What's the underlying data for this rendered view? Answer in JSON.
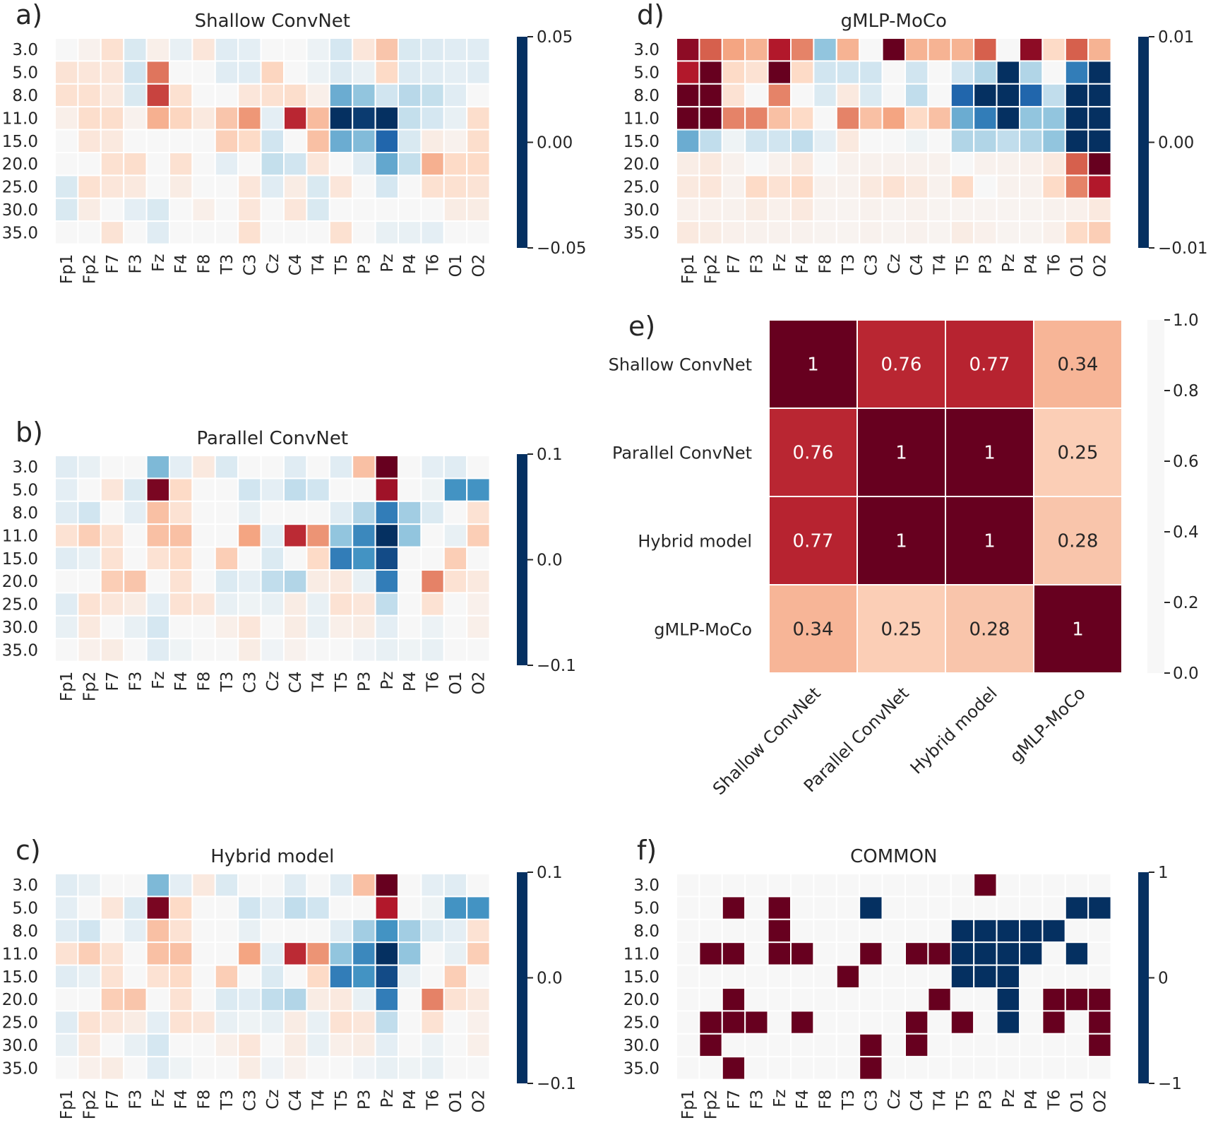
{
  "chart_data": {
    "type": "heatmap",
    "colormap": "RdBu_r",
    "channels": [
      "Fp1",
      "Fp2",
      "F7",
      "F3",
      "Fz",
      "F4",
      "F8",
      "T3",
      "C3",
      "Cz",
      "C4",
      "T4",
      "T5",
      "P3",
      "Pz",
      "P4",
      "T6",
      "O1",
      "O2"
    ],
    "frequencies": [
      "3.0",
      "5.0",
      "8.0",
      "11.0",
      "15.0",
      "20.0",
      "25.0",
      "30.0",
      "35.0"
    ],
    "panels": [
      {
        "label": "a)",
        "title": "Shallow ConvNet",
        "type": "heatmap",
        "vmin": -0.05,
        "vmax": 0.05,
        "colorbar_ticks": [
          "0.05",
          "0.00",
          "−0.05"
        ],
        "values": [
          [
            0,
            0.002,
            0.008,
            -0.008,
            0.003,
            -0.004,
            0.006,
            -0.006,
            -0.005,
            0,
            0,
            -0.003,
            -0.009,
            0.006,
            0.014,
            -0.008,
            -0.007,
            -0.006,
            -0.006
          ],
          [
            0.007,
            0.006,
            0.006,
            -0.01,
            0.027,
            0,
            0,
            -0.006,
            -0.006,
            0.011,
            0,
            -0.003,
            -0.007,
            -0.004,
            0.01,
            -0.007,
            -0.006,
            -0.005,
            -0.006
          ],
          [
            0.008,
            0.008,
            0.005,
            -0.008,
            0.034,
            0.008,
            0,
            0,
            0.006,
            0.008,
            0.009,
            0.003,
            -0.025,
            -0.02,
            -0.01,
            -0.014,
            -0.012,
            -0.006,
            0
          ],
          [
            0.003,
            0.009,
            0.009,
            0.002,
            0.018,
            0.011,
            0.005,
            0.014,
            0.022,
            -0.005,
            0.038,
            0.016,
            -0.05,
            -0.048,
            -0.05,
            -0.012,
            -0.009,
            -0.004,
            0.009
          ],
          [
            0,
            0.006,
            0.005,
            0,
            0,
            0,
            0,
            0.012,
            0.01,
            -0.01,
            0,
            0.015,
            -0.025,
            -0.022,
            -0.04,
            -0.008,
            0.004,
            0.002,
            0.009
          ],
          [
            0,
            0,
            0.008,
            0.009,
            0,
            0.008,
            0,
            -0.005,
            0,
            -0.012,
            -0.01,
            0.006,
            0,
            -0.006,
            -0.026,
            -0.012,
            0.018,
            0.01,
            0.01
          ],
          [
            -0.008,
            0.008,
            0.006,
            0.005,
            0,
            0.004,
            0,
            0,
            0.006,
            -0.006,
            0.004,
            -0.008,
            0.006,
            0,
            -0.009,
            0,
            0.008,
            0.008,
            0.007
          ],
          [
            -0.008,
            0.004,
            0,
            -0.005,
            -0.008,
            0,
            0.003,
            0,
            0.006,
            0,
            0.006,
            -0.008,
            0,
            0,
            0,
            0,
            0,
            0.004,
            0.004
          ],
          [
            0,
            0,
            0.007,
            0,
            -0.006,
            0,
            0,
            0,
            0.008,
            0,
            0,
            0,
            0.008,
            0,
            -0.004,
            -0.004,
            -0.005,
            0,
            0
          ]
        ]
      },
      {
        "label": "b)",
        "title": "Parallel ConvNet",
        "type": "heatmap",
        "vmin": -0.1,
        "vmax": 0.1,
        "colorbar_ticks": [
          "0.1",
          "0.0",
          "−0.1"
        ],
        "values": [
          [
            -0.012,
            -0.008,
            0,
            0,
            -0.045,
            -0.01,
            0.01,
            -0.015,
            0,
            0,
            -0.012,
            0,
            -0.012,
            0.03,
            0.1,
            0,
            -0.01,
            -0.012,
            0
          ],
          [
            -0.01,
            0,
            0.012,
            -0.015,
            0.095,
            0.02,
            0,
            0,
            -0.02,
            -0.01,
            -0.025,
            -0.02,
            0,
            0,
            0.085,
            0,
            -0.005,
            -0.06,
            -0.06
          ],
          [
            -0.012,
            -0.02,
            0,
            -0.01,
            0.03,
            0.015,
            0,
            0,
            -0.008,
            0,
            0,
            0,
            -0.012,
            -0.03,
            -0.07,
            -0.035,
            -0.015,
            0,
            0.015
          ],
          [
            0.015,
            0.025,
            0.015,
            0,
            0.03,
            0.03,
            0,
            0,
            0.04,
            -0.01,
            0.075,
            0.045,
            -0.04,
            -0.065,
            -0.1,
            -0.04,
            0,
            -0.008,
            0.025
          ],
          [
            -0.012,
            -0.008,
            0.015,
            0,
            0.015,
            0.02,
            0,
            0.025,
            0,
            -0.015,
            0,
            0.02,
            -0.07,
            -0.06,
            -0.09,
            0,
            0,
            0.025,
            0
          ],
          [
            0,
            0,
            0.025,
            0.028,
            0,
            0.015,
            0,
            -0.015,
            -0.01,
            -0.025,
            -0.03,
            0.008,
            0.01,
            -0.008,
            -0.07,
            0,
            0.05,
            0.015,
            0.01
          ],
          [
            -0.012,
            0.015,
            0.012,
            0.008,
            -0.01,
            0.015,
            0.012,
            -0.008,
            -0.005,
            -0.008,
            0.008,
            -0.008,
            0.015,
            0.012,
            -0.025,
            0,
            0.015,
            0,
            0.005
          ],
          [
            -0.008,
            0.01,
            0,
            -0.008,
            -0.018,
            0,
            0,
            0.006,
            0.012,
            0,
            0.008,
            -0.008,
            0.006,
            0.008,
            -0.01,
            0,
            -0.006,
            0,
            0.006
          ],
          [
            0,
            0.005,
            0.008,
            0,
            -0.012,
            -0.005,
            0,
            0,
            0.008,
            -0.004,
            0.004,
            0,
            0,
            -0.004,
            -0.008,
            -0.005,
            -0.008,
            0,
            0
          ]
        ]
      },
      {
        "label": "c)",
        "title": "Hybrid model",
        "type": "heatmap",
        "vmin": -0.1,
        "vmax": 0.1,
        "colorbar_ticks": [
          "0.1",
          "0.0",
          "−0.1"
        ],
        "values": [
          [
            -0.012,
            -0.008,
            0,
            0,
            -0.045,
            -0.01,
            0.01,
            -0.015,
            0,
            0,
            -0.012,
            0,
            -0.012,
            0.03,
            0.1,
            0,
            -0.01,
            -0.012,
            0
          ],
          [
            -0.01,
            0,
            0.012,
            -0.015,
            0.095,
            0.02,
            0,
            0,
            -0.02,
            -0.01,
            -0.025,
            -0.02,
            0,
            0,
            0.08,
            0,
            -0.005,
            -0.06,
            -0.06
          ],
          [
            -0.012,
            -0.02,
            0,
            -0.01,
            0.03,
            0.015,
            0,
            0,
            -0.008,
            0,
            0,
            0,
            -0.012,
            -0.035,
            -0.06,
            -0.035,
            -0.015,
            -0.01,
            0.015
          ],
          [
            0.015,
            0.025,
            0.015,
            0,
            0.03,
            0.03,
            0,
            0,
            0.04,
            -0.01,
            0.075,
            0.045,
            -0.04,
            -0.065,
            -0.1,
            -0.04,
            0,
            -0.008,
            0.025
          ],
          [
            -0.012,
            -0.008,
            0.015,
            0,
            0.015,
            0.02,
            0,
            0.025,
            0,
            -0.015,
            0,
            0.02,
            -0.07,
            -0.06,
            -0.09,
            -0.008,
            0,
            0.025,
            0
          ],
          [
            0,
            0,
            0.025,
            0.028,
            0,
            0.015,
            0,
            -0.015,
            -0.012,
            -0.025,
            -0.03,
            0.008,
            0.01,
            -0.008,
            -0.07,
            0,
            0.05,
            0.015,
            0.01
          ],
          [
            -0.012,
            0.015,
            0.012,
            0.008,
            -0.01,
            0.015,
            0.012,
            -0.008,
            -0.005,
            -0.008,
            0.008,
            -0.008,
            0.015,
            0.012,
            -0.025,
            0,
            0.015,
            0,
            0.005
          ],
          [
            -0.008,
            0.01,
            0,
            -0.008,
            -0.018,
            0,
            0,
            0.006,
            0.012,
            0,
            0.008,
            -0.008,
            0.006,
            0.008,
            -0.01,
            0,
            -0.006,
            0,
            0.006
          ],
          [
            0,
            0.005,
            0.008,
            0,
            -0.012,
            -0.005,
            0,
            0,
            0.008,
            -0.004,
            0.004,
            0,
            0,
            -0.004,
            -0.008,
            -0.005,
            -0.008,
            0,
            0
          ]
        ]
      },
      {
        "label": "d)",
        "title": "gMLP-MoCo",
        "type": "heatmap",
        "vmin": -0.01,
        "vmax": 0.01,
        "colorbar_ticks": [
          "0.01",
          "0.00",
          "−0.01"
        ],
        "values": [
          [
            0.009,
            0.006,
            0.004,
            0.0035,
            0.008,
            0.005,
            -0.004,
            0.0035,
            0,
            0.01,
            0.0035,
            0.0035,
            0.0035,
            0.006,
            0,
            0.009,
            0.002,
            0.006,
            0.0035
          ],
          [
            0.008,
            0.01,
            0.002,
            0.0015,
            0.01,
            0.002,
            -0.002,
            -0.002,
            -0.002,
            0,
            -0.002,
            0,
            -0.002,
            -0.003,
            -0.01,
            -0.003,
            0,
            -0.007,
            -0.01
          ],
          [
            0.01,
            0.01,
            0.0015,
            0,
            0.005,
            0,
            -0.0015,
            0.001,
            -0.0015,
            0,
            -0.0025,
            0,
            -0.008,
            -0.01,
            -0.01,
            -0.008,
            -0.0025,
            -0.01,
            -0.01
          ],
          [
            0.01,
            0.01,
            0.005,
            0.005,
            0.003,
            0.002,
            0,
            0.005,
            0.003,
            0.004,
            0.002,
            0.003,
            -0.005,
            -0.007,
            -0.01,
            -0.004,
            -0.004,
            -0.01,
            -0.01
          ],
          [
            -0.005,
            -0.0025,
            -0.0005,
            -0.002,
            -0.002,
            -0.0025,
            -0.001,
            0.001,
            0,
            0,
            -0.0005,
            0,
            -0.003,
            -0.003,
            -0.0025,
            -0.003,
            -0.004,
            -0.01,
            -0.01
          ],
          [
            0.0007,
            0.001,
            0.0004,
            0,
            0.0004,
            0.001,
            0,
            0.0004,
            0.0004,
            0.0004,
            0.0004,
            0.0004,
            0,
            0.0004,
            0.0004,
            0.0005,
            0.001,
            0.006,
            0.01
          ],
          [
            0.001,
            0.0012,
            0.0004,
            0.002,
            0.0015,
            0.002,
            0.0004,
            0.0004,
            0.001,
            0.0015,
            0.001,
            0.0004,
            0.002,
            0,
            0.0004,
            0.0004,
            0.002,
            0.005,
            0.008
          ],
          [
            0.0005,
            0.0005,
            0.0004,
            0.0008,
            0.0005,
            0.001,
            0.0003,
            0.0003,
            0.0004,
            0.0003,
            0.0004,
            0.0003,
            0.0003,
            0.0003,
            0.0003,
            0.0003,
            0.0004,
            0.0005,
            0.001
          ],
          [
            0.001,
            0.0008,
            0.0005,
            0.0004,
            0.0004,
            0.0004,
            0.0003,
            0.0003,
            0.0004,
            0.0003,
            0.0004,
            0.0003,
            0.0008,
            0.0005,
            0.0003,
            0.0003,
            0.0005,
            0.002,
            0.0025
          ]
        ]
      },
      {
        "label": "e)",
        "title": "",
        "type": "table",
        "vmin": 0,
        "vmax": 1,
        "colorbar_ticks": [
          "1.0",
          "0.8",
          "0.6",
          "0.4",
          "0.2",
          "0.0"
        ],
        "models": [
          "Shallow ConvNet",
          "Parallel ConvNet",
          "Hybrid model",
          "gMLP-MoCo"
        ],
        "values": [
          [
            1,
            0.76,
            0.77,
            0.34
          ],
          [
            0.76,
            1,
            1,
            0.25
          ],
          [
            0.77,
            1,
            1,
            0.28
          ],
          [
            0.34,
            0.25,
            0.28,
            1
          ]
        ],
        "cell_labels": [
          [
            "1",
            "0.76",
            "0.77",
            "0.34"
          ],
          [
            "0.76",
            "1",
            "1",
            "0.25"
          ],
          [
            "0.77",
            "1",
            "1",
            "0.28"
          ],
          [
            "0.34",
            "0.25",
            "0.28",
            "1"
          ]
        ]
      },
      {
        "label": "f)",
        "title": "COMMON",
        "type": "heatmap",
        "vmin": -1,
        "vmax": 1,
        "colorbar_ticks": [
          "1",
          "0",
          "−1"
        ],
        "values": [
          [
            0,
            0,
            0,
            0,
            0,
            0,
            0,
            0,
            0,
            0,
            0,
            0,
            0,
            1,
            0,
            0,
            0,
            0,
            0
          ],
          [
            0,
            0,
            1,
            0,
            1,
            0,
            0,
            0,
            -1,
            0,
            0,
            0,
            0,
            0,
            0,
            0,
            0,
            -1,
            -1
          ],
          [
            0,
            0,
            0,
            0,
            1,
            0,
            0,
            0,
            0,
            0,
            0,
            0,
            -1,
            -1,
            -1,
            -1,
            -1,
            0,
            0
          ],
          [
            0,
            1,
            1,
            0,
            1,
            1,
            0,
            0,
            1,
            0,
            1,
            1,
            -1,
            -1,
            -1,
            -1,
            0,
            -1,
            0
          ],
          [
            0,
            0,
            0,
            0,
            0,
            0,
            0,
            1,
            0,
            0,
            0,
            0,
            -1,
            -1,
            -1,
            0,
            0,
            0,
            0
          ],
          [
            0,
            0,
            1,
            0,
            0,
            0,
            0,
            0,
            0,
            0,
            0,
            1,
            0,
            0,
            -1,
            0,
            1,
            1,
            1
          ],
          [
            0,
            1,
            1,
            1,
            0,
            1,
            0,
            0,
            0,
            0,
            1,
            0,
            1,
            0,
            -1,
            0,
            1,
            0,
            1
          ],
          [
            0,
            1,
            0,
            0,
            0,
            0,
            0,
            0,
            1,
            0,
            1,
            0,
            0,
            0,
            0,
            0,
            0,
            0,
            1
          ],
          [
            0,
            0,
            1,
            0,
            0,
            0,
            0,
            0,
            1,
            0,
            0,
            0,
            0,
            0,
            0,
            0,
            0,
            0,
            0
          ]
        ]
      }
    ]
  }
}
